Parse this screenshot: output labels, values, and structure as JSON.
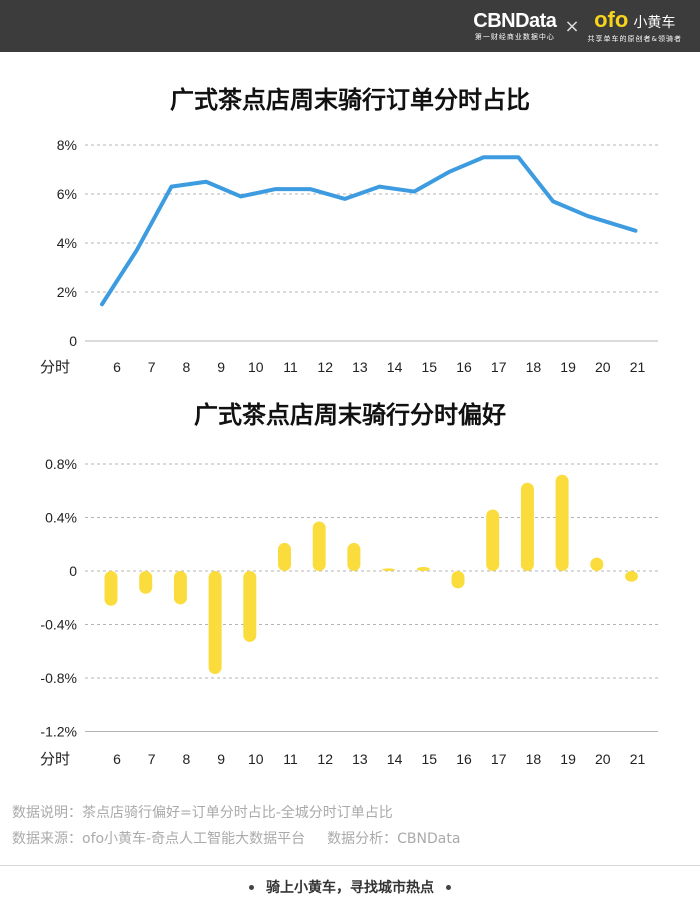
{
  "header": {
    "brand_main": "CBNData",
    "brand_sub": "第一财经商业数据中心",
    "cross": "×",
    "partner_logo": "ofo",
    "partner_name": "小黄车",
    "partner_sub": "共享单车的原创者&领骑者"
  },
  "colors": {
    "line": "#3d9be0",
    "bar": "#fadd3d",
    "header_bg": "#3c3c3c",
    "grid": "#b4b4b4"
  },
  "chart_data": [
    {
      "type": "line",
      "title": "广式茶点店周末骑行订单分时占比",
      "xlabel": "分时",
      "ylabel": "",
      "categories": [
        "6",
        "7",
        "8",
        "9",
        "10",
        "11",
        "12",
        "13",
        "14",
        "15",
        "16",
        "17",
        "18",
        "19",
        "20",
        "21"
      ],
      "y_tick_labels": [
        "0",
        "2%",
        "4%",
        "6%",
        "8%"
      ],
      "ylim": [
        0,
        8
      ],
      "grid": "horizontal-dashed",
      "series": [
        {
          "values": [
            1.5,
            3.7,
            6.3,
            6.5,
            5.9,
            6.2,
            6.2,
            5.8,
            6.3,
            6.1,
            6.9,
            7.5,
            7.5,
            5.7,
            5.1,
            4.5
          ]
        }
      ]
    },
    {
      "type": "bar",
      "title": "广式茶点店周末骑行分时偏好",
      "xlabel": "分时",
      "ylabel": "",
      "categories": [
        "6",
        "7",
        "8",
        "9",
        "10",
        "11",
        "12",
        "13",
        "14",
        "15",
        "16",
        "17",
        "18",
        "19",
        "20",
        "21"
      ],
      "y_tick_labels": [
        "0.8%",
        "0.4%",
        "0",
        "-0.4%",
        "-0.8%",
        "-1.2%"
      ],
      "ylim": [
        -1.2,
        0.8
      ],
      "grid": "horizontal-dashed",
      "series": [
        {
          "values": [
            -0.26,
            -0.17,
            -0.25,
            -0.77,
            -0.53,
            0.21,
            0.37,
            0.21,
            0.02,
            0.03,
            -0.13,
            0.46,
            0.66,
            0.72,
            0.1,
            -0.08
          ]
        }
      ]
    }
  ],
  "notes": {
    "line1": "数据说明：茶点店骑行偏好=订单分时占比-全城分时订单占比",
    "line2a": "数据来源：ofo小黄车-奇点人工智能大数据平台",
    "line2b": "数据分析：CBNData"
  },
  "footer": {
    "slogan": "骑上小黄车，寻找城市热点"
  }
}
